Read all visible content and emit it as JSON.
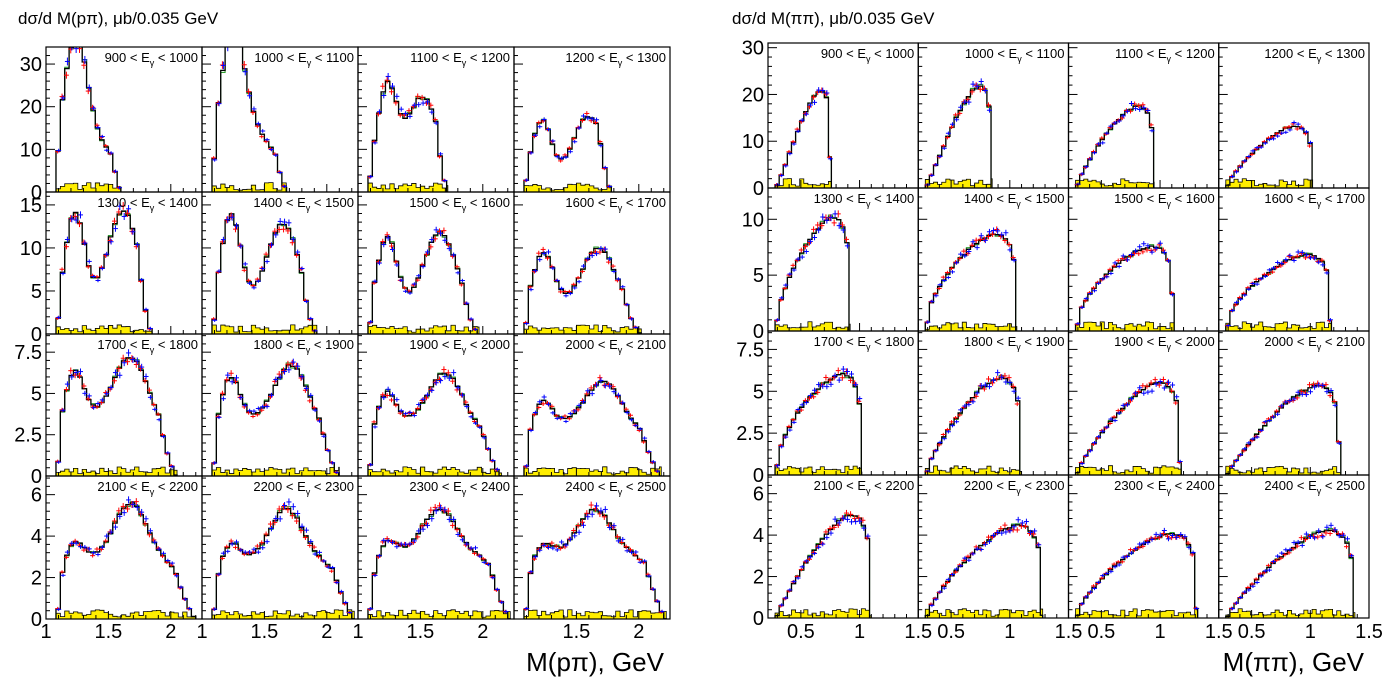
{
  "palette": {
    "red": "#ff0000",
    "blue": "#0000ff",
    "green": "#2e9c2e",
    "black": "#000000",
    "yellow": "#ffee00"
  },
  "chart_data": [
    {
      "type": "histogram-grid",
      "title": "dσ/d M(pπ), μb/0.035 GeV",
      "xlabel": "M(pπ), GeV",
      "xlim": [
        1.0,
        2.25
      ],
      "x_ticks": [
        [
          "1",
          "1.5",
          "2",
          ""
        ],
        [
          "1",
          "1.5",
          "2",
          ""
        ],
        [
          "1",
          "1.5",
          "2",
          ""
        ],
        [
          "1.5",
          "2",
          ""
        ]
      ],
      "x_tick_values": [
        [
          1.0,
          1.5,
          2.0,
          2.25
        ],
        [
          1.0,
          1.5,
          2.0,
          2.25
        ],
        [
          1.0,
          1.5,
          2.0,
          2.25
        ],
        [
          1.5,
          2.0,
          2.25
        ]
      ],
      "row_ylim": [
        [
          0,
          34
        ],
        [
          0,
          16.5
        ],
        [
          0,
          8.6
        ],
        [
          0,
          6.9
        ]
      ],
      "row_yticks": [
        [
          {
            "v": 0,
            "label": "0"
          },
          {
            "v": 10,
            "label": "10"
          },
          {
            "v": 20,
            "label": "20"
          },
          {
            "v": 30,
            "label": "30"
          }
        ],
        [
          {
            "v": 0,
            "label": "0"
          },
          {
            "v": 5,
            "label": "5"
          },
          {
            "v": 10,
            "label": "10"
          },
          {
            "v": 15,
            "label": "15"
          }
        ],
        [
          {
            "v": 0,
            "label": "0"
          },
          {
            "v": 2.5,
            "label": "2.5"
          },
          {
            "v": 5,
            "label": "5"
          },
          {
            "v": 7.5,
            "label": "7.5"
          }
        ],
        [
          {
            "v": 0,
            "label": "0"
          },
          {
            "v": 2,
            "label": "2"
          },
          {
            "v": 4,
            "label": "4"
          },
          {
            "v": 6,
            "label": "6"
          }
        ]
      ],
      "panels": [
        {
          "label": "900 < E_γ < 1000",
          "kind": "ppi",
          "xmin": 1.08,
          "xmax": 1.6,
          "p1": 1.23,
          "h1": 31.5,
          "p2": 1.45,
          "h2": 8.0,
          "w": 0.1,
          "base": 1.5,
          "edge": 0.5
        },
        {
          "label": "1000 < E_γ < 1100",
          "kind": "ppi",
          "xmin": 1.08,
          "xmax": 1.68,
          "p1": 1.24,
          "h1": 33.0,
          "p2": 1.46,
          "h2": 10.0,
          "w": 0.1,
          "base": 2.0,
          "edge": 0.5
        },
        {
          "label": "1100 < E_γ < 1200",
          "kind": "ppi",
          "xmin": 1.08,
          "xmax": 1.72,
          "p1": 1.23,
          "h1": 22.0,
          "p2": 1.52,
          "h2": 20.0,
          "w": 0.08,
          "base": 2.5,
          "edge": 1.0
        },
        {
          "label": "1200 < E_γ < 1300",
          "kind": "ppi",
          "xmin": 1.08,
          "xmax": 1.78,
          "p1": 1.22,
          "h1": 15.0,
          "p2": 1.6,
          "h2": 16.0,
          "w": 0.08,
          "base": 2.0,
          "edge": 1.0
        },
        {
          "label": "1300 < E_γ < 1400",
          "kind": "ppi",
          "xmin": 1.08,
          "xmax": 1.85,
          "p1": 1.23,
          "h1": 12.0,
          "p2": 1.62,
          "h2": 12.0,
          "w": 0.08,
          "base": 2.5,
          "edge": 1.5
        },
        {
          "label": "1400 < E_γ < 1500",
          "kind": "ppi",
          "xmin": 1.08,
          "xmax": 1.92,
          "p1": 1.23,
          "h1": 11.5,
          "p2": 1.65,
          "h2": 10.0,
          "w": 0.08,
          "base": 3.0,
          "edge": 1.5
        },
        {
          "label": "1500 < E_γ < 1600",
          "kind": "ppi",
          "xmin": 1.08,
          "xmax": 1.97,
          "p1": 1.23,
          "h1": 9.0,
          "p2": 1.66,
          "h2": 9.0,
          "w": 0.08,
          "base": 3.0,
          "edge": 1.5
        },
        {
          "label": "1600 < E_γ < 1700",
          "kind": "ppi",
          "xmin": 1.08,
          "xmax": 2.02,
          "p1": 1.23,
          "h1": 7.5,
          "p2": 1.68,
          "h2": 7.5,
          "w": 0.09,
          "base": 2.5,
          "edge": 1.5
        },
        {
          "label": "1700 < E_γ < 1800",
          "kind": "ppi",
          "xmin": 1.08,
          "xmax": 2.05,
          "p1": 1.22,
          "h1": 3.5,
          "p2": 1.68,
          "h2": 3.5,
          "w": 0.08,
          "base": 3.8,
          "edge": 1.8
        },
        {
          "label": "1800 < E_γ < 1900",
          "kind": "ppi",
          "xmin": 1.08,
          "xmax": 2.1,
          "p1": 1.22,
          "h1": 3.3,
          "p2": 1.72,
          "h2": 3.2,
          "w": 0.08,
          "base": 3.6,
          "edge": 1.8
        },
        {
          "label": "1900 < E_γ < 2000",
          "kind": "ppi",
          "xmin": 1.08,
          "xmax": 2.15,
          "p1": 1.22,
          "h1": 2.5,
          "p2": 1.7,
          "h2": 2.8,
          "w": 0.08,
          "base": 3.5,
          "edge": 1.8
        },
        {
          "label": "2000 < E_γ < 2100",
          "kind": "ppi",
          "xmin": 1.08,
          "xmax": 2.18,
          "p1": 1.22,
          "h1": 2.0,
          "p2": 1.72,
          "h2": 2.3,
          "w": 0.08,
          "base": 3.5,
          "edge": 1.8
        },
        {
          "label": "2100 < E_γ < 2200",
          "kind": "ppi",
          "xmin": 1.08,
          "xmax": 2.2,
          "p1": 1.22,
          "h1": 1.5,
          "p2": 1.68,
          "h2": 2.5,
          "w": 0.08,
          "base": 3.1,
          "edge": 1.5
        },
        {
          "label": "2200 < E_γ < 2300",
          "kind": "ppi",
          "xmin": 1.08,
          "xmax": 2.22,
          "p1": 1.22,
          "h1": 1.4,
          "p2": 1.68,
          "h2": 2.2,
          "w": 0.08,
          "base": 3.1,
          "edge": 1.4
        },
        {
          "label": "2300 < E_γ < 2400",
          "kind": "ppi",
          "xmin": 1.08,
          "xmax": 2.22,
          "p1": 1.22,
          "h1": 1.2,
          "p2": 1.65,
          "h2": 1.8,
          "w": 0.08,
          "base": 3.5,
          "edge": 1.4
        },
        {
          "label": "2400 < E_γ < 2500",
          "kind": "ppi",
          "xmin": 1.08,
          "xmax": 2.22,
          "p1": 1.22,
          "h1": 1.1,
          "p2": 1.65,
          "h2": 1.8,
          "w": 0.08,
          "base": 3.5,
          "edge": 1.4
        }
      ]
    },
    {
      "type": "histogram-grid",
      "title": "dσ/d M(ππ), μb/0.035 GeV",
      "xlabel": "M(ππ), GeV",
      "xlim": [
        0.22,
        1.5
      ],
      "x_ticks": [
        [
          "",
          "0.5",
          "1",
          "1.5"
        ],
        [
          "0.5",
          "1",
          "1.5"
        ],
        [
          "0.5",
          "1",
          "1.5"
        ],
        [
          "0.5",
          "1",
          "1.5"
        ]
      ],
      "x_tick_values": [
        [
          0.22,
          0.5,
          1.0,
          1.5
        ],
        [
          0.5,
          1.0,
          1.5
        ],
        [
          0.5,
          1.0,
          1.5
        ],
        [
          0.5,
          1.0,
          1.5
        ]
      ],
      "row_ylim": [
        [
          0,
          31
        ],
        [
          0,
          12.8
        ],
        [
          0,
          8.6
        ],
        [
          0,
          6.9
        ]
      ],
      "row_yticks": [
        [
          {
            "v": 0,
            "label": "0"
          },
          {
            "v": 10,
            "label": "10"
          },
          {
            "v": 20,
            "label": "20"
          },
          {
            "v": 30,
            "label": "30"
          }
        ],
        [
          {
            "v": 0,
            "label": "0"
          },
          {
            "v": 5,
            "label": "5"
          },
          {
            "v": 10,
            "label": "10"
          }
        ],
        [
          {
            "v": 0,
            "label": "0"
          },
          {
            "v": 2.5,
            "label": "2.5"
          },
          {
            "v": 5,
            "label": "5"
          },
          {
            "v": 7.5,
            "label": "7.5"
          }
        ],
        [
          {
            "v": 0,
            "label": "0"
          },
          {
            "v": 2,
            "label": "2"
          },
          {
            "v": 4,
            "label": "4"
          },
          {
            "v": 6,
            "label": "6"
          }
        ]
      ],
      "panels": [
        {
          "label": "900 < E_γ < 1000",
          "kind": "pipi",
          "xmin": 0.28,
          "xmax": 0.76,
          "peak": 24.0,
          "pos": 0.85,
          "skew": 1.3,
          "base": 1.5
        },
        {
          "label": "1000 < E_γ < 1100",
          "kind": "pipi",
          "xmin": 0.28,
          "xmax": 0.85,
          "peak": 25.0,
          "pos": 0.9,
          "skew": 1.2,
          "base": 1.5
        },
        {
          "label": "1100 < E_γ < 1200",
          "kind": "pipi",
          "xmin": 0.28,
          "xmax": 0.95,
          "peak": 20.0,
          "pos": 0.78,
          "skew": 0.9,
          "base": 0.8
        },
        {
          "label": "1200 < E_γ < 1300",
          "kind": "pipi",
          "xmin": 0.28,
          "xmax": 1.02,
          "peak": 15.0,
          "pos": 0.75,
          "skew": 0.8,
          "base": 0.6
        },
        {
          "label": "1300 < E_γ < 1400",
          "kind": "pipi",
          "xmin": 0.28,
          "xmax": 0.92,
          "peak": 11.5,
          "pos": 0.55,
          "skew": 0.6,
          "base": 0.6
        },
        {
          "label": "1400 < E_γ < 1500",
          "kind": "pipi",
          "xmin": 0.28,
          "xmax": 1.06,
          "peak": 9.8,
          "pos": 0.55,
          "skew": 0.5,
          "base": 0.6
        },
        {
          "label": "1500 < E_γ < 1600",
          "kind": "pipi",
          "xmin": 0.28,
          "xmax": 1.12,
          "peak": 8.5,
          "pos": 0.6,
          "skew": 0.5,
          "base": 0.6
        },
        {
          "label": "1600 < E_γ < 1700",
          "kind": "pipi",
          "xmin": 0.28,
          "xmax": 1.18,
          "peak": 7.7,
          "pos": 0.65,
          "skew": 0.5,
          "base": 0.6
        },
        {
          "label": "1700 < E_γ < 1800",
          "kind": "pipi",
          "xmin": 0.28,
          "xmax": 1.02,
          "peak": 6.8,
          "pos": 0.9,
          "skew": 0.5,
          "base": 0.8
        },
        {
          "label": "1800 < E_γ < 1900",
          "kind": "pipi",
          "xmin": 0.28,
          "xmax": 1.1,
          "peak": 6.6,
          "pos": 0.95,
          "skew": 0.8,
          "base": 0.8
        },
        {
          "label": "1900 < E_γ < 2000",
          "kind": "pipi",
          "xmin": 0.28,
          "xmax": 1.18,
          "peak": 6.3,
          "pos": 0.93,
          "skew": 0.9,
          "base": 0.8
        },
        {
          "label": "2000 < E_γ < 2100",
          "kind": "pipi",
          "xmin": 0.28,
          "xmax": 1.26,
          "peak": 6.1,
          "pos": 0.92,
          "skew": 1.0,
          "base": 0.8
        },
        {
          "label": "2100 < E_γ < 2200",
          "kind": "pipi",
          "xmin": 0.28,
          "xmax": 1.1,
          "peak": 5.7,
          "pos": 0.92,
          "skew": 1.0,
          "base": 0.7
        },
        {
          "label": "2200 < E_γ < 2300",
          "kind": "pipi",
          "xmin": 0.28,
          "xmax": 1.28,
          "peak": 5.1,
          "pos": 0.78,
          "skew": 0.8,
          "base": 0.7
        },
        {
          "label": "2300 < E_γ < 2400",
          "kind": "pipi",
          "xmin": 0.28,
          "xmax": 1.32,
          "peak": 4.6,
          "pos": 0.72,
          "skew": 0.7,
          "base": 0.7
        },
        {
          "label": "2400 < E_γ < 2500",
          "kind": "pipi",
          "xmin": 0.28,
          "xmax": 1.38,
          "peak": 4.8,
          "pos": 0.92,
          "skew": 0.9,
          "base": 0.7
        }
      ]
    }
  ]
}
